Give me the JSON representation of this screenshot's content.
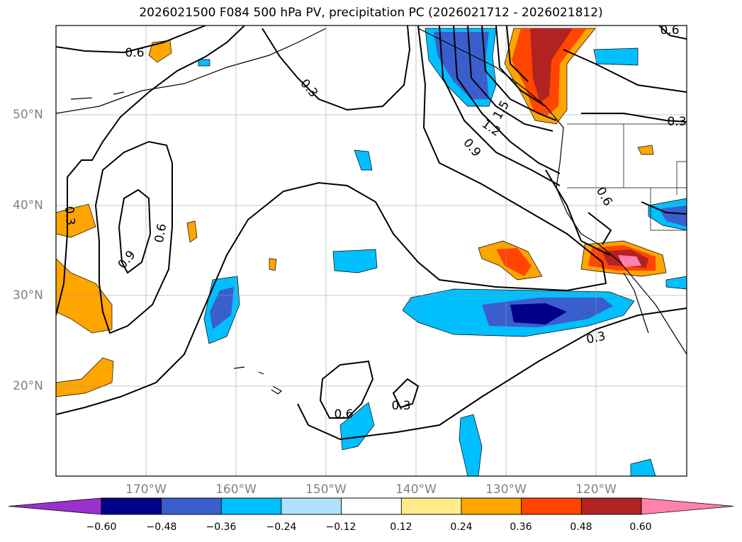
{
  "title": "2026021500 F084 500 hPa PV, precipitation PC (2026021712 - 2026021812)",
  "lat_labels": [
    "50°N",
    "40°N",
    "30°N",
    "20°N"
  ],
  "lon_labels": [
    "170°W",
    "160°W",
    "150°W",
    "140°W",
    "130°W",
    "120°W"
  ],
  "contour_labels": [
    "0.6",
    "0.3",
    "0.3",
    "0.6",
    "0.9",
    "0.3",
    "0.6",
    "0.3",
    "0.3",
    "0.6",
    "1.5",
    "1.2",
    "0.9",
    "0.6",
    "0.3",
    "0.6"
  ],
  "colorbar": {
    "ticks": [
      "−0.60",
      "−0.48",
      "−0.36",
      "−0.24",
      "−0.12",
      "0.12",
      "0.24",
      "0.36",
      "0.48",
      "0.60"
    ],
    "colors": [
      "#9932cc",
      "#00008b",
      "#3a5fcd",
      "#00bfff",
      "#b0e2ff",
      "#ffffff",
      "#ffeb8a",
      "#ffa500",
      "#ff4500",
      "#b22222",
      "#ff82ab"
    ]
  },
  "chart_data": {
    "type": "map",
    "title": "2026021500 F084 500 hPa PV, precipitation PC (2026021712 - 2026021812)",
    "lon_range": [
      -180,
      -110
    ],
    "lat_range": [
      10,
      60
    ],
    "pv_contour_levels": [
      0.3,
      0.6,
      0.9,
      1.2,
      1.5
    ],
    "colorbar_bounds": [
      -0.6,
      -0.48,
      -0.36,
      -0.24,
      -0.12,
      0.12,
      0.24,
      0.36,
      0.48,
      0.6
    ],
    "colorbar_extend": "both"
  }
}
